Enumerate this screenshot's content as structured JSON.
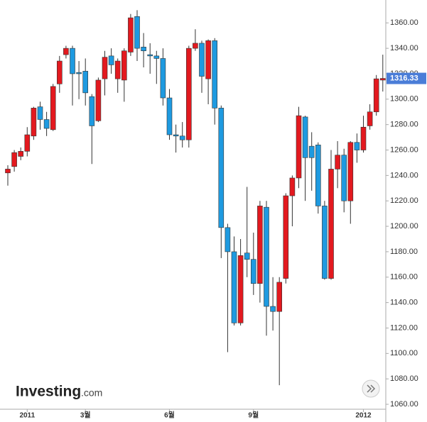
{
  "chart_data": {
    "type": "candlestick",
    "categories": [
      null,
      null,
      null,
      "2011",
      null,
      null,
      null,
      null,
      null,
      null,
      null,
      null,
      "3월",
      null,
      null,
      null,
      null,
      null,
      null,
      null,
      null,
      null,
      null,
      null,
      null,
      "6월",
      null,
      null,
      null,
      null,
      null,
      null,
      null,
      null,
      null,
      null,
      null,
      null,
      "9월",
      null,
      null,
      null,
      null,
      null,
      null,
      null,
      null,
      null,
      null,
      null,
      null,
      null,
      null,
      null,
      null,
      "2012",
      null,
      null,
      null
    ],
    "series": [
      {
        "up_color": "#e3191f",
        "down_color": "#1e9ae0",
        "open": [
          1242,
          1247,
          1255,
          1259,
          1271,
          1294,
          1284,
          1276,
          1312,
          1335,
          1340,
          1321,
          1322,
          1302,
          1283,
          1316,
          1334,
          1316,
          1315,
          1337,
          1365,
          1341,
          1335,
          1334,
          1332,
          1301,
          1272,
          1271,
          1268,
          1340,
          1344,
          1316,
          1346,
          1293,
          1199,
          1180,
          1124,
          1179,
          1174,
          1155,
          1215,
          1137,
          1133,
          1159,
          1224,
          1238,
          1286,
          1263,
          1264,
          1216,
          1159,
          1245,
          1256,
          1220,
          1266,
          1260,
          1279,
          1290,
          1315
        ],
        "high": [
          1248,
          1260,
          1262,
          1278,
          1294,
          1298,
          1290,
          1312,
          1334,
          1342,
          1342,
          1330,
          1332,
          1304,
          1317,
          1338,
          1340,
          1332,
          1340,
          1367,
          1370,
          1352,
          1344,
          1338,
          1340,
          1308,
          1280,
          1282,
          1342,
          1355,
          1346,
          1347,
          1348,
          1295,
          1202,
          1192,
          1190,
          1231,
          1195,
          1220,
          1220,
          1160,
          1160,
          1226,
          1240,
          1294,
          1287,
          1274,
          1266,
          1220,
          1260,
          1267,
          1261,
          1267,
          1273,
          1287,
          1296,
          1319,
          1335
        ],
        "low": [
          1232,
          1243,
          1252,
          1255,
          1268,
          1276,
          1271,
          1275,
          1305,
          1332,
          1295,
          1300,
          1295,
          1249,
          1282,
          1303,
          1320,
          1305,
          1298,
          1334,
          1330,
          1325,
          1320,
          1312,
          1295,
          1268,
          1258,
          1262,
          1262,
          1338,
          1305,
          1296,
          1280,
          1175,
          1101,
          1122,
          1122,
          1160,
          1146,
          1140,
          1114,
          1118,
          1075,
          1155,
          1200,
          1230,
          1220,
          1228,
          1210,
          1158,
          1158,
          1230,
          1211,
          1202,
          1250,
          1258,
          1276,
          1287,
          1306
        ],
        "close": [
          1245,
          1258,
          1259,
          1272,
          1293,
          1284,
          1277,
          1310,
          1330,
          1340,
          1320,
          1320,
          1305,
          1279,
          1315,
          1333,
          1327,
          1330,
          1338,
          1364,
          1340,
          1338,
          1334,
          1332,
          1301,
          1272,
          1271,
          1268,
          1340,
          1344,
          1318,
          1346,
          1293,
          1199,
          1180,
          1124,
          1177,
          1174,
          1155,
          1216,
          1137,
          1133,
          1156,
          1224,
          1238,
          1287,
          1254,
          1254,
          1216,
          1159,
          1245,
          1256,
          1220,
          1266,
          1260,
          1278,
          1290,
          1316,
          1316.33
        ]
      }
    ],
    "ylim": [
      1055,
      1378
    ],
    "yticks": [
      {
        "value": 1060,
        "label": "1060.00"
      },
      {
        "value": 1080,
        "label": "1080.00"
      },
      {
        "value": 1100,
        "label": "1100.00"
      },
      {
        "value": 1120,
        "label": "1120.00"
      },
      {
        "value": 1140,
        "label": "1140.00"
      },
      {
        "value": 1160,
        "label": "1160.00"
      },
      {
        "value": 1180,
        "label": "1180.00"
      },
      {
        "value": 1200,
        "label": "1200.00"
      },
      {
        "value": 1220,
        "label": "1220.00"
      },
      {
        "value": 1240,
        "label": "1240.00"
      },
      {
        "value": 1260,
        "label": "1260.00"
      },
      {
        "value": 1280,
        "label": "1280.00"
      },
      {
        "value": 1300,
        "label": "1300.00"
      },
      {
        "value": 1320,
        "label": "1320.00"
      },
      {
        "value": 1340,
        "label": "1340.00"
      },
      {
        "value": 1360,
        "label": "1360.00"
      }
    ],
    "last_price_label": "1316.33",
    "watermark": {
      "brand": "Investing",
      "suffix": ".com"
    }
  }
}
